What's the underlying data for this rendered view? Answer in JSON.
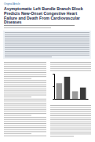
{
  "header": {
    "label": "Original Article"
  },
  "title": "Asymptomatic Left Bundle Branch Block Predicts New-Onset Congestive Heart Failure and Death From Cardiovascular Diseases",
  "chart_data": {
    "type": "bar",
    "categories": [
      null,
      null,
      null,
      null
    ],
    "values": [
      62,
      88,
      30,
      45
    ],
    "colors": [
      "#9a9a9a",
      "#3a3a3a",
      "#9a9a9a",
      "#3a3a3a"
    ],
    "ylim": [
      0,
      100
    ],
    "yticks": [
      0,
      50,
      100
    ],
    "tick_labels": false
  }
}
